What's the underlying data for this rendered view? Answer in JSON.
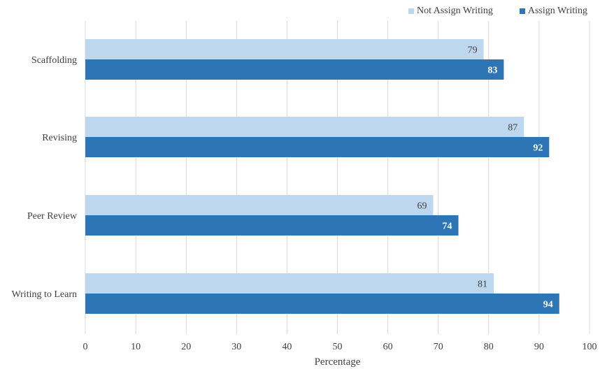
{
  "chart_data": {
    "type": "bar",
    "orientation": "horizontal",
    "categories": [
      "Scaffolding",
      "Revising",
      "Peer Review",
      "Writing to Learn"
    ],
    "series": [
      {
        "name": "Not Assign Writing",
        "values": [
          79,
          87,
          69,
          81
        ],
        "color": "#BDD7EE",
        "label_color": "#404040"
      },
      {
        "name": "Assign Writing",
        "values": [
          83,
          92,
          74,
          94
        ],
        "color": "#2E75B6",
        "label_color": "#ffffff"
      }
    ],
    "xlabel": "Percentage",
    "ylabel": "",
    "xlim": [
      0,
      100
    ],
    "xticks": [
      0,
      10,
      20,
      30,
      40,
      50,
      60,
      70,
      80,
      90,
      100
    ],
    "grid": "vertical",
    "grid_color": "#D9D9D9",
    "legend_position": "top-right"
  }
}
